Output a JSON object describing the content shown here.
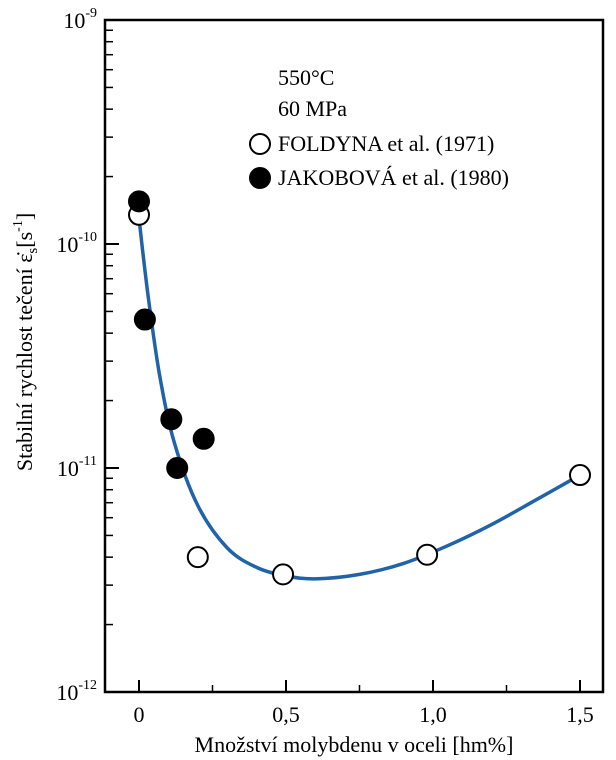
{
  "chart_data": {
    "type": "scatter",
    "title": "",
    "xlabel": "Množství molybdenu v oceli [hm%]",
    "ylabel": "Stabilní rychlost tečení ε̇",
    "ylabel_sub": "s",
    "ylabel_unit": "[s",
    "ylabel_unit_exp": "-1",
    "ylabel_unit_close": "]",
    "xlim": [
      -0.12,
      1.58
    ],
    "ylim": [
      1e-12,
      1e-09
    ],
    "yscale": "log",
    "grid": false,
    "legend_position": "top-right",
    "x_ticks": [
      {
        "value": 0,
        "label": "0"
      },
      {
        "value": 0.5,
        "label": "0,5"
      },
      {
        "value": 1.0,
        "label": "1,0"
      },
      {
        "value": 1.5,
        "label": "1,5"
      }
    ],
    "y_ticks": [
      {
        "value": 1e-09,
        "base": "10",
        "exp": "-9"
      },
      {
        "value": 1e-10,
        "base": "10",
        "exp": "-10"
      },
      {
        "value": 1e-11,
        "base": "10",
        "exp": "-11"
      },
      {
        "value": 1e-12,
        "base": "10",
        "exp": "-12"
      }
    ],
    "annotations": [
      "550°C",
      "60 MPa"
    ],
    "series": [
      {
        "name": "FOLDYNA et al. (1971)",
        "marker": "open-circle",
        "color": "#000000",
        "points": [
          {
            "x": 0.0,
            "y": 1.35e-10
          },
          {
            "x": 0.2,
            "y": 4e-12
          },
          {
            "x": 0.49,
            "y": 3.35e-12
          },
          {
            "x": 0.98,
            "y": 4.1e-12
          },
          {
            "x": 1.5,
            "y": 9.3e-12
          }
        ]
      },
      {
        "name": "JAKOBOVÁ et al. (1980)",
        "marker": "filled-circle",
        "color": "#000000",
        "points": [
          {
            "x": 0.0,
            "y": 1.55e-10
          },
          {
            "x": 0.02,
            "y": 4.6e-11
          },
          {
            "x": 0.11,
            "y": 1.65e-11
          },
          {
            "x": 0.13,
            "y": 1e-11
          },
          {
            "x": 0.22,
            "y": 1.35e-11
          }
        ]
      }
    ],
    "trend_curve": {
      "color": "#1f63a8",
      "points": [
        {
          "x": 0.0,
          "y": 1.3e-10
        },
        {
          "x": 0.03,
          "y": 6e-11
        },
        {
          "x": 0.07,
          "y": 2.6e-11
        },
        {
          "x": 0.12,
          "y": 1.3e-11
        },
        {
          "x": 0.2,
          "y": 6.8e-12
        },
        {
          "x": 0.3,
          "y": 4.4e-12
        },
        {
          "x": 0.4,
          "y": 3.6e-12
        },
        {
          "x": 0.5,
          "y": 3.3e-12
        },
        {
          "x": 0.6,
          "y": 3.2e-12
        },
        {
          "x": 0.75,
          "y": 3.35e-12
        },
        {
          "x": 0.9,
          "y": 3.75e-12
        },
        {
          "x": 1.05,
          "y": 4.5e-12
        },
        {
          "x": 1.2,
          "y": 5.6e-12
        },
        {
          "x": 1.35,
          "y": 7.2e-12
        },
        {
          "x": 1.5,
          "y": 9.3e-12
        }
      ]
    }
  }
}
